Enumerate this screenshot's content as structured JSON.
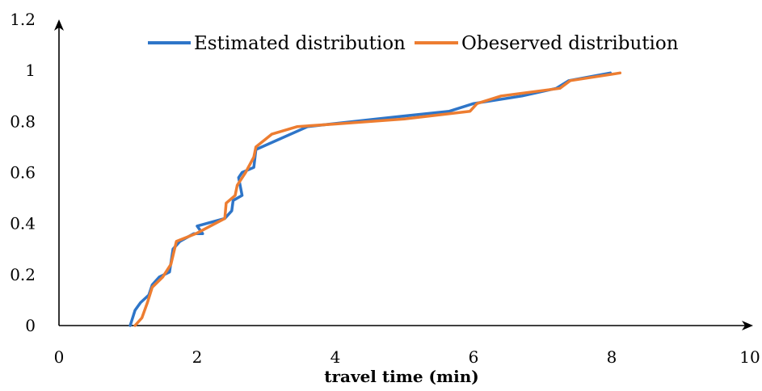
{
  "chart_data": {
    "type": "line",
    "title": "",
    "xlabel": "travel time  (min)",
    "ylabel": "",
    "xlim": [
      0,
      10
    ],
    "ylim": [
      0,
      1.2
    ],
    "x_ticks": [
      0,
      2,
      4,
      6,
      8,
      10
    ],
    "y_ticks": [
      0,
      0.2,
      0.4,
      0.6,
      0.8,
      1,
      1.2
    ],
    "x_tick_labels": [
      "0",
      "2",
      "4",
      "6",
      "8",
      "10"
    ],
    "y_tick_labels": [
      "0",
      "0.2",
      "0.4",
      "0.6",
      "0.8",
      "1",
      "1.2"
    ],
    "grid": false,
    "legend_position": "top",
    "series": [
      {
        "name": "Estimated distribution",
        "color": "#2E75C8",
        "x": [
          1.03,
          1.1,
          1.18,
          1.3,
          1.35,
          1.45,
          1.6,
          1.65,
          1.75,
          1.95,
          2.08,
          2.0,
          2.4,
          2.5,
          2.52,
          2.65,
          2.6,
          2.65,
          2.82,
          2.85,
          3.1,
          3.6,
          4.6,
          5.65,
          6.0,
          6.7,
          7.2,
          7.38,
          7.98
        ],
        "y": [
          0.0,
          0.06,
          0.09,
          0.12,
          0.16,
          0.19,
          0.21,
          0.3,
          0.33,
          0.36,
          0.36,
          0.39,
          0.42,
          0.45,
          0.49,
          0.51,
          0.58,
          0.6,
          0.62,
          0.69,
          0.72,
          0.78,
          0.81,
          0.84,
          0.87,
          0.9,
          0.93,
          0.96,
          0.99
        ]
      },
      {
        "name": "Obeserved distribution",
        "color": "#ED7D31",
        "x": [
          1.1,
          1.2,
          1.28,
          1.35,
          1.5,
          1.62,
          1.7,
          1.98,
          2.4,
          2.42,
          2.55,
          2.58,
          2.7,
          2.82,
          2.85,
          3.08,
          3.45,
          4.0,
          5.0,
          5.95,
          6.05,
          6.4,
          7.25,
          7.4,
          8.12
        ],
        "y": [
          0.0,
          0.03,
          0.09,
          0.15,
          0.19,
          0.24,
          0.33,
          0.36,
          0.42,
          0.48,
          0.51,
          0.55,
          0.6,
          0.66,
          0.7,
          0.75,
          0.78,
          0.79,
          0.81,
          0.84,
          0.87,
          0.9,
          0.93,
          0.96,
          0.99
        ]
      }
    ]
  }
}
